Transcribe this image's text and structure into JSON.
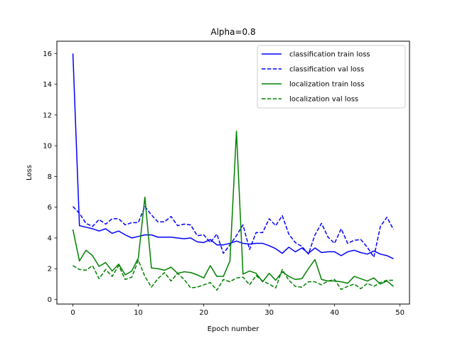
{
  "chart_data": {
    "type": "line",
    "title": "Alpha=0.8",
    "xlabel": "Epoch number",
    "ylabel": "Loss",
    "xlim": [
      -2.45,
      51.45
    ],
    "ylim": [
      -0.3,
      16.8
    ],
    "xticks": [
      0,
      10,
      20,
      30,
      40,
      50
    ],
    "yticks": [
      0,
      2,
      4,
      6,
      8,
      10,
      12,
      14,
      16
    ],
    "grid": false,
    "legend_position": "top-right",
    "x": [
      0,
      1,
      2,
      3,
      4,
      5,
      6,
      7,
      8,
      9,
      10,
      11,
      12,
      13,
      14,
      15,
      16,
      17,
      18,
      19,
      20,
      21,
      22,
      23,
      24,
      25,
      26,
      27,
      28,
      29,
      30,
      31,
      32,
      33,
      34,
      35,
      36,
      37,
      38,
      39,
      40,
      41,
      42,
      43,
      44,
      45,
      46,
      47,
      48,
      49
    ],
    "series": [
      {
        "name": "classification train loss",
        "color": "#0000ff",
        "dash": "solid",
        "values": [
          16.0,
          4.8,
          4.7,
          4.6,
          4.45,
          4.6,
          4.3,
          4.45,
          4.2,
          4.0,
          4.1,
          4.2,
          4.2,
          4.05,
          4.05,
          4.05,
          4.0,
          3.95,
          4.0,
          3.75,
          3.7,
          3.9,
          3.55,
          3.55,
          3.65,
          3.8,
          3.65,
          3.6,
          3.65,
          3.65,
          3.5,
          3.3,
          3.0,
          3.4,
          3.1,
          3.35,
          3.0,
          3.35,
          3.05,
          3.1,
          3.1,
          2.85,
          3.1,
          3.2,
          3.05,
          2.95,
          3.15,
          2.95,
          2.85,
          2.65
        ]
      },
      {
        "name": "classification val loss",
        "color": "#0000ff",
        "dash": "dashed",
        "values": [
          6.05,
          5.6,
          4.95,
          4.75,
          5.2,
          4.9,
          5.25,
          5.25,
          4.85,
          5.0,
          5.0,
          6.05,
          5.5,
          5.05,
          5.05,
          5.4,
          4.8,
          4.9,
          4.85,
          4.15,
          4.2,
          3.7,
          4.25,
          3.0,
          3.55,
          4.15,
          4.85,
          3.25,
          4.35,
          4.35,
          5.25,
          4.8,
          5.45,
          4.25,
          3.7,
          3.45,
          2.95,
          4.2,
          4.95,
          4.05,
          3.65,
          4.6,
          3.65,
          3.85,
          3.9,
          3.4,
          2.75,
          4.75,
          5.35,
          4.55
        ]
      },
      {
        "name": "localization train loss",
        "color": "#008000",
        "dash": "solid",
        "values": [
          4.55,
          2.5,
          3.2,
          2.85,
          2.15,
          2.4,
          1.85,
          2.3,
          1.6,
          1.85,
          2.7,
          6.65,
          2.05,
          2.0,
          1.9,
          2.1,
          1.7,
          1.8,
          1.75,
          1.6,
          1.4,
          2.2,
          1.5,
          1.5,
          2.5,
          10.95,
          1.65,
          1.85,
          1.7,
          1.15,
          1.7,
          1.25,
          1.8,
          1.5,
          1.3,
          1.35,
          2.0,
          2.6,
          1.3,
          1.2,
          1.2,
          1.15,
          1.05,
          1.5,
          1.35,
          1.2,
          1.4,
          1.0,
          1.2,
          0.85
        ]
      },
      {
        "name": "localization val loss",
        "color": "#008000",
        "dash": "dashed",
        "values": [
          2.2,
          1.95,
          1.9,
          2.2,
          1.35,
          1.95,
          1.5,
          2.2,
          1.3,
          1.45,
          2.55,
          1.5,
          0.8,
          1.35,
          1.75,
          1.2,
          1.7,
          1.3,
          0.75,
          0.8,
          0.95,
          1.1,
          0.6,
          1.3,
          1.15,
          1.4,
          1.45,
          0.95,
          1.55,
          1.2,
          1.0,
          0.75,
          1.95,
          1.25,
          0.85,
          0.8,
          1.15,
          1.15,
          0.95,
          1.2,
          1.3,
          0.65,
          0.85,
          1.0,
          0.7,
          1.05,
          0.85,
          1.1,
          1.25,
          1.25
        ]
      }
    ]
  }
}
